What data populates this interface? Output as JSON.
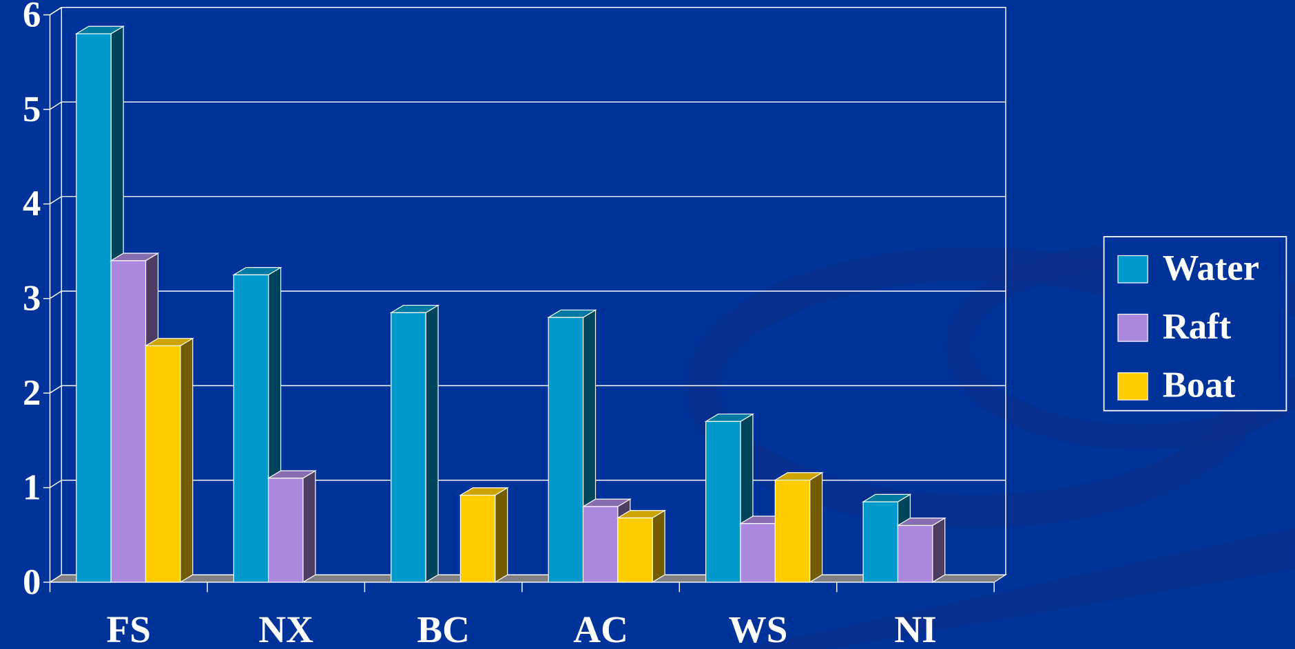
{
  "chart_data": {
    "type": "bar3d",
    "categories": [
      "FS",
      "NX",
      "BC",
      "AC",
      "WS",
      "NI"
    ],
    "series": [
      {
        "name": "Water",
        "color": "#0099cc",
        "values": [
          5.8,
          3.25,
          2.85,
          2.8,
          1.7,
          0.85
        ]
      },
      {
        "name": "Raft",
        "color": "#aa88dd",
        "values": [
          3.4,
          1.1,
          null,
          0.8,
          0.62,
          0.6
        ]
      },
      {
        "name": "Boat",
        "color": "#ffcc00",
        "values": [
          2.5,
          null,
          0.92,
          0.68,
          1.08,
          null
        ]
      }
    ],
    "ylim": [
      0,
      6
    ],
    "yticks": [
      0,
      1,
      2,
      3,
      4,
      5,
      6
    ],
    "grid": true,
    "legend": "right"
  }
}
